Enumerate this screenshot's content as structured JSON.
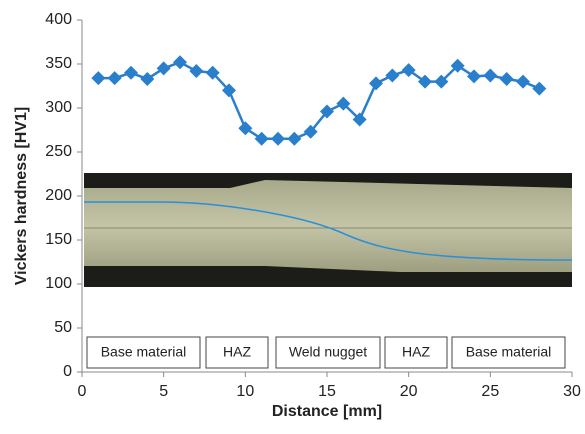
{
  "chart_data": {
    "type": "line",
    "x_label": "Distance [mm]",
    "y_label": "Vickers hardness [HV1]",
    "xlim": [
      0,
      30
    ],
    "xticks": [
      0,
      5,
      10,
      15,
      20,
      25,
      30
    ],
    "ylim": [
      0,
      400
    ],
    "yticks": [
      0,
      50,
      100,
      150,
      200,
      250,
      300,
      350,
      400
    ],
    "series": [
      {
        "color": "#2a7fcc",
        "x": [
          1,
          2,
          3,
          4,
          5,
          6,
          7,
          8,
          9,
          10,
          11,
          12,
          13,
          14,
          15,
          16,
          17,
          18,
          19,
          20,
          21,
          22,
          23,
          24,
          25,
          26,
          27,
          28
        ],
        "values": [
          334,
          334,
          340,
          333,
          345,
          352,
          342,
          340,
          320,
          277,
          265,
          265,
          265,
          273,
          296,
          305,
          287,
          328,
          337,
          343,
          330,
          330,
          348,
          336,
          337,
          333,
          330,
          322
        ]
      }
    ],
    "zones": [
      "Base material",
      "HAZ",
      "Weld nugget",
      "HAZ",
      "Base material"
    ]
  }
}
